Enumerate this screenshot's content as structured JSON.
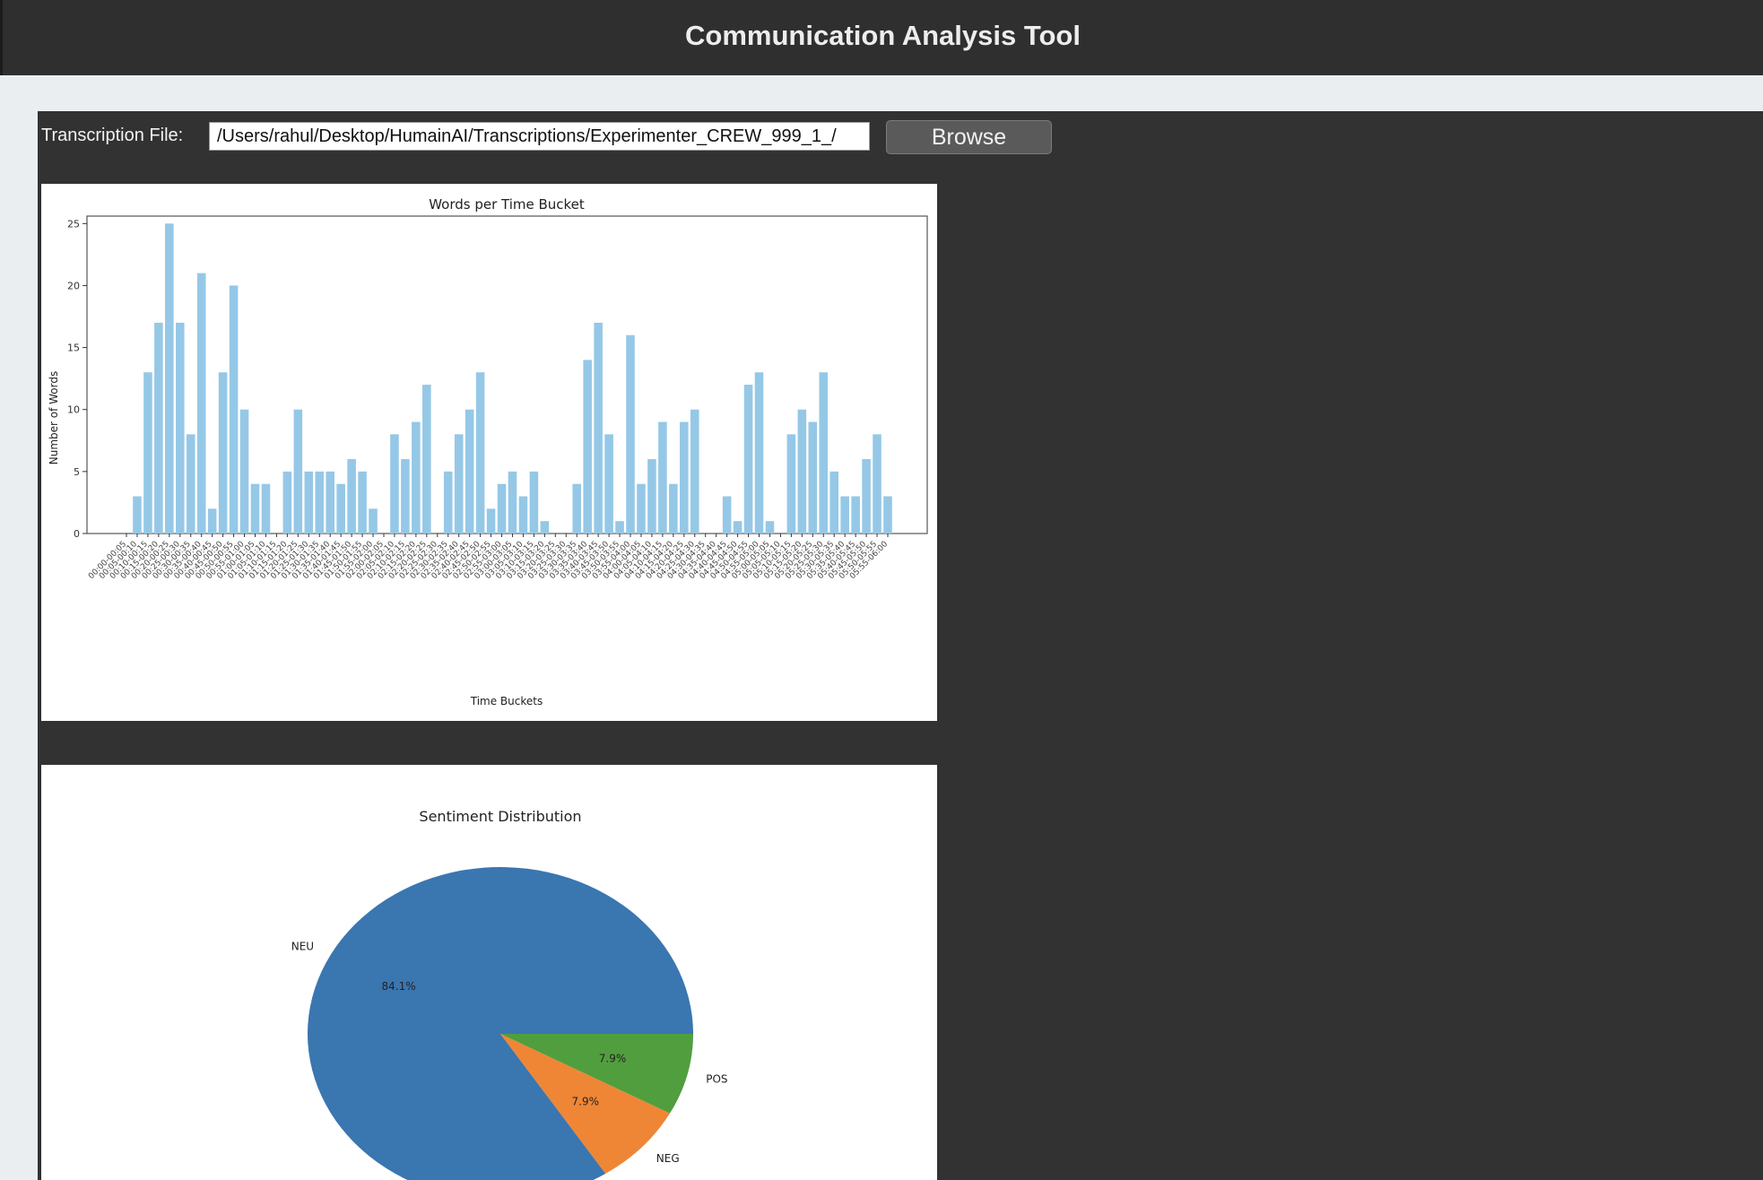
{
  "window": {
    "title": "Communication Analysis Tool"
  },
  "file_row": {
    "label": "Transcription File:",
    "path_value": "/Users/rahul/Desktop/HumainAI/Transcriptions/Experimenter_CREW_999_1_/",
    "browse_label": "Browse"
  },
  "chart_data": [
    {
      "type": "bar",
      "title": "Words per Time Bucket",
      "xlabel": "Time Buckets",
      "ylabel": "Number of Words",
      "ylim": [
        0,
        25.6
      ],
      "yticks": [
        0,
        5,
        10,
        15,
        20,
        25
      ],
      "bar_color": "#95c8e6",
      "values": [
        0,
        3,
        13,
        17,
        25,
        17,
        8,
        21,
        2,
        13,
        20,
        10,
        4,
        4,
        0,
        5,
        10,
        5,
        5,
        5,
        4,
        6,
        5,
        2,
        0,
        8,
        6,
        9,
        12,
        0,
        5,
        8,
        10,
        13,
        2,
        4,
        5,
        3,
        5,
        1,
        0,
        0,
        4,
        14,
        17,
        8,
        1,
        16,
        4,
        6,
        9,
        4,
        9,
        10,
        0,
        0,
        3,
        1,
        12,
        13,
        1,
        0,
        8,
        10,
        9,
        13,
        5,
        3,
        3,
        6,
        8,
        3
      ],
      "first_category": "00:00-00:05",
      "last_category": "05:55-06:00"
    },
    {
      "type": "pie",
      "title": "Sentiment Distribution",
      "slices": [
        {
          "label": "NEU",
          "value": 84.1,
          "pct_label": "84.1%",
          "color": "#3a76b0"
        },
        {
          "label": "NEG",
          "value": 7.9,
          "pct_label": "7.9%",
          "color": "#ef8636"
        },
        {
          "label": "POS",
          "value": 7.9,
          "pct_label": "7.9%",
          "color": "#519e3e"
        }
      ]
    }
  ]
}
